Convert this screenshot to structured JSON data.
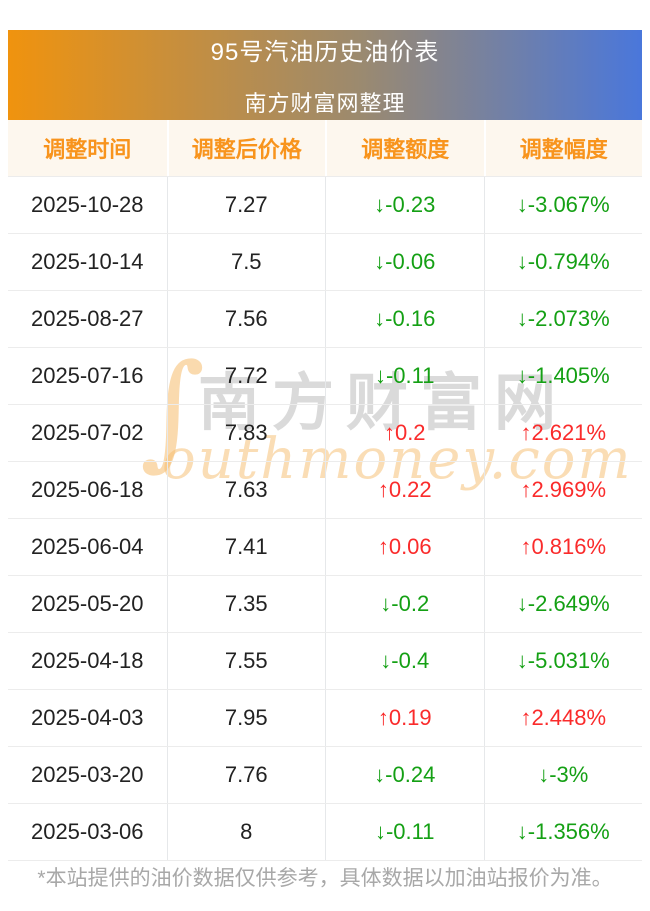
{
  "banner": {
    "title": "95号汽油历史油价表",
    "subtitle": "南方财富网整理"
  },
  "chart_data": {
    "type": "table",
    "title": "95号汽油历史油价表",
    "subtitle": "南方财富网整理",
    "columns": [
      "调整时间",
      "调整后价格",
      "调整额度",
      "调整幅度"
    ],
    "rows": [
      {
        "date": "2025-10-28",
        "price": "7.27",
        "change": -0.23,
        "pct": -3.067,
        "display_change": "↓-0.23",
        "display_pct": "↓-3.067%",
        "trend": "down"
      },
      {
        "date": "2025-10-14",
        "price": "7.5",
        "change": -0.06,
        "pct": -0.794,
        "display_change": "↓-0.06",
        "display_pct": "↓-0.794%",
        "trend": "down"
      },
      {
        "date": "2025-08-27",
        "price": "7.56",
        "change": -0.16,
        "pct": -2.073,
        "display_change": "↓-0.16",
        "display_pct": "↓-2.073%",
        "trend": "down"
      },
      {
        "date": "2025-07-16",
        "price": "7.72",
        "change": -0.11,
        "pct": -1.405,
        "display_change": "↓-0.11",
        "display_pct": "↓-1.405%",
        "trend": "down"
      },
      {
        "date": "2025-07-02",
        "price": "7.83",
        "change": 0.2,
        "pct": 2.621,
        "display_change": "↑0.2",
        "display_pct": "↑2.621%",
        "trend": "up"
      },
      {
        "date": "2025-06-18",
        "price": "7.63",
        "change": 0.22,
        "pct": 2.969,
        "display_change": "↑0.22",
        "display_pct": "↑2.969%",
        "trend": "up"
      },
      {
        "date": "2025-06-04",
        "price": "7.41",
        "change": 0.06,
        "pct": 0.816,
        "display_change": "↑0.06",
        "display_pct": "↑0.816%",
        "trend": "up"
      },
      {
        "date": "2025-05-20",
        "price": "7.35",
        "change": -0.2,
        "pct": -2.649,
        "display_change": "↓-0.2",
        "display_pct": "↓-2.649%",
        "trend": "down"
      },
      {
        "date": "2025-04-18",
        "price": "7.55",
        "change": -0.4,
        "pct": -5.031,
        "display_change": "↓-0.4",
        "display_pct": "↓-5.031%",
        "trend": "down"
      },
      {
        "date": "2025-04-03",
        "price": "7.95",
        "change": 0.19,
        "pct": 2.448,
        "display_change": "↑0.19",
        "display_pct": "↑2.448%",
        "trend": "up"
      },
      {
        "date": "2025-03-20",
        "price": "7.76",
        "change": -0.24,
        "pct": -3,
        "display_change": "↓-0.24",
        "display_pct": "↓-3%",
        "trend": "down"
      },
      {
        "date": "2025-03-06",
        "price": "8",
        "change": -0.11,
        "pct": -1.356,
        "display_change": "↓-0.11",
        "display_pct": "↓-1.356%",
        "trend": "down"
      }
    ]
  },
  "watermark": {
    "swash": "∫",
    "cn": "南方财富网",
    "en": "outhmoney.com"
  },
  "footer": {
    "note": "*本站提供的油价数据仅供参考，具体数据以加油站报价为准。"
  },
  "colors": {
    "banner_gradient_left": "#f0930e",
    "banner_gradient_right": "#4a77db",
    "header_text": "#f8941d",
    "header_bg": "#fdf7ee",
    "up_red": "#fa2b2b",
    "down_green": "#14a014",
    "body_text": "#222222",
    "footer_text": "#a8a8a8"
  }
}
